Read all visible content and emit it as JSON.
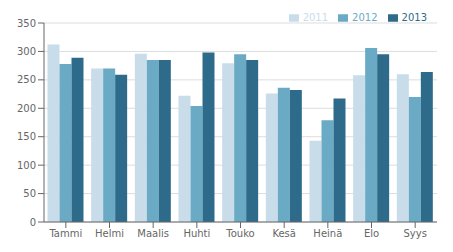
{
  "chart_data": {
    "type": "bar",
    "categories": [
      "Tammi",
      "Helmi",
      "Maalis",
      "Huhti",
      "Touko",
      "Kesä",
      "Heinä",
      "Elo",
      "Syys"
    ],
    "series": [
      {
        "name": "2011",
        "color": "#c8dcea",
        "values": [
          312,
          270,
          296,
          222,
          279,
          226,
          143,
          258,
          260
        ]
      },
      {
        "name": "2012",
        "color": "#6aaac5",
        "values": [
          278,
          270,
          285,
          204,
          295,
          236,
          179,
          306,
          220
        ]
      },
      {
        "name": "2013",
        "color": "#2e6b8a",
        "values": [
          289,
          259,
          285,
          298,
          285,
          232,
          217,
          295,
          264
        ]
      }
    ],
    "ylim": [
      0,
      350
    ],
    "yticks": [
      0,
      50,
      100,
      150,
      200,
      250,
      300,
      350
    ],
    "grid": true,
    "legend": "upper right"
  }
}
